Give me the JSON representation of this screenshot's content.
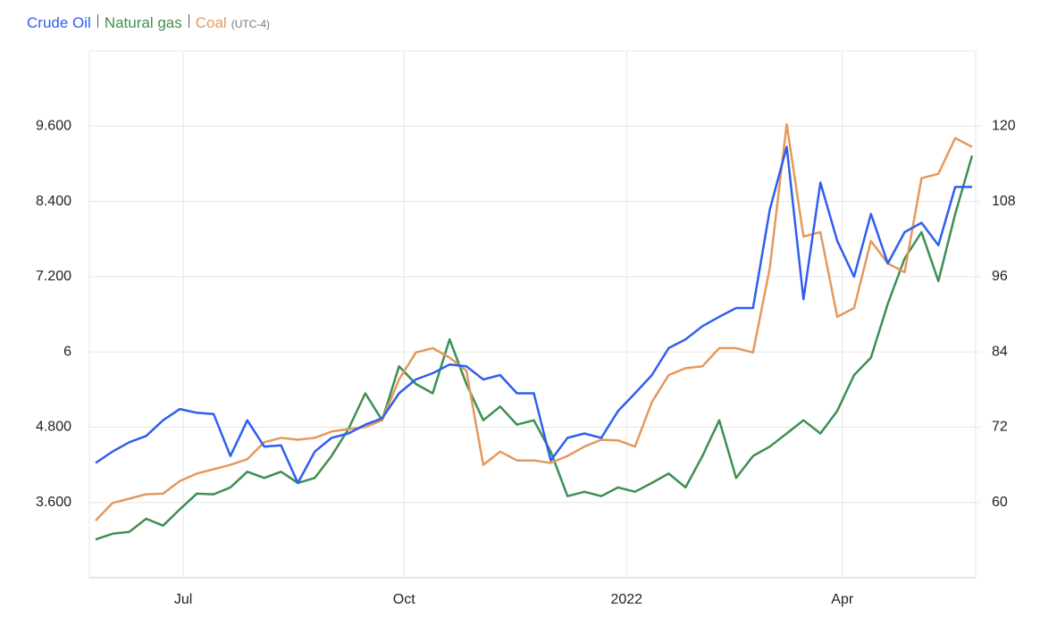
{
  "chart_data": {
    "type": "line",
    "timezone": "(UTC-4)",
    "x": [
      0,
      1,
      2,
      3,
      4,
      5,
      6,
      7,
      8,
      9,
      10,
      11,
      12,
      13,
      14,
      15,
      16,
      17,
      18,
      19,
      20,
      21,
      22,
      23,
      24,
      25,
      26,
      27,
      28,
      29,
      30,
      31,
      32,
      33,
      34,
      35,
      36,
      37,
      38,
      39,
      40,
      41,
      42,
      43,
      44,
      45,
      46,
      47,
      48,
      49,
      50,
      51,
      52
    ],
    "xlim": [
      0,
      52
    ],
    "xticks": [
      {
        "value": 5.2,
        "label": "Jul"
      },
      {
        "value": 18.3,
        "label": "Oct"
      },
      {
        "value": 31.5,
        "label": "2022"
      },
      {
        "value": 44.3,
        "label": "Apr"
      }
    ],
    "ylim": [
      2.4,
      10.8
    ],
    "yticks": [
      {
        "value": 3.6,
        "label": "3.600"
      },
      {
        "value": 4.8,
        "label": "4.800"
      },
      6,
      {
        "value": 7.2,
        "label": "7.200"
      },
      {
        "value": 8.4,
        "label": "8.400"
      },
      {
        "value": 9.6,
        "label": "9.600"
      }
    ],
    "y2lim": [
      48,
      132
    ],
    "y2ticks": [
      60,
      72,
      84,
      96,
      108,
      120
    ],
    "grid": true,
    "series": [
      {
        "name": "Crude Oil",
        "color": "#2e5ef0",
        "axis": "y2",
        "values": [
          66.3,
          68.1,
          69.6,
          70.6,
          73.1,
          74.9,
          74.3,
          74.1,
          67.4,
          73.1,
          68.9,
          69.1,
          63.1,
          68.1,
          70.3,
          71.0,
          72.4,
          73.4,
          77.4,
          79.6,
          80.6,
          82.0,
          81.7,
          79.6,
          80.3,
          77.4,
          77.4,
          66.7,
          70.3,
          71.0,
          70.3,
          74.6,
          77.4,
          80.3,
          84.6,
          86.0,
          88.1,
          89.6,
          91.0,
          91.0,
          106.7,
          116.7,
          92.4,
          111.0,
          101.7,
          96.0,
          106.0,
          98.1,
          103.1,
          104.6,
          101.0,
          110.3,
          110.3
        ]
      },
      {
        "name": "Natural gas",
        "color": "#3d8f52",
        "values": [
          3.01,
          3.1,
          3.13,
          3.34,
          3.23,
          3.49,
          3.74,
          3.73,
          3.84,
          4.09,
          3.99,
          4.09,
          3.91,
          3.99,
          4.34,
          4.77,
          5.34,
          4.91,
          5.77,
          5.49,
          5.34,
          6.2,
          5.49,
          4.91,
          5.13,
          4.84,
          4.91,
          4.41,
          3.7,
          3.77,
          3.7,
          3.84,
          3.77,
          3.91,
          4.06,
          3.84,
          4.34,
          4.91,
          3.99,
          4.34,
          4.49,
          4.7,
          4.91,
          4.7,
          5.06,
          5.63,
          5.91,
          6.77,
          7.49,
          7.91,
          7.13,
          8.2,
          9.13
        ]
      },
      {
        "name": "Coal",
        "color": "#e3995e",
        "axis": "y2",
        "values": [
          57.1,
          59.9,
          60.6,
          61.3,
          61.4,
          63.4,
          64.6,
          65.3,
          66.0,
          66.9,
          69.6,
          70.3,
          70.0,
          70.3,
          71.3,
          71.7,
          72.0,
          73.1,
          79.6,
          83.9,
          84.6,
          83.1,
          81.0,
          66.0,
          68.1,
          66.7,
          66.7,
          66.3,
          67.4,
          68.9,
          70.0,
          69.9,
          68.9,
          76.0,
          80.3,
          81.4,
          81.7,
          84.6,
          84.6,
          83.9,
          97.4,
          120.3,
          102.4,
          103.1,
          89.6,
          91.0,
          101.7,
          98.1,
          96.7,
          111.7,
          112.4,
          118.1,
          116.7
        ]
      }
    ]
  }
}
